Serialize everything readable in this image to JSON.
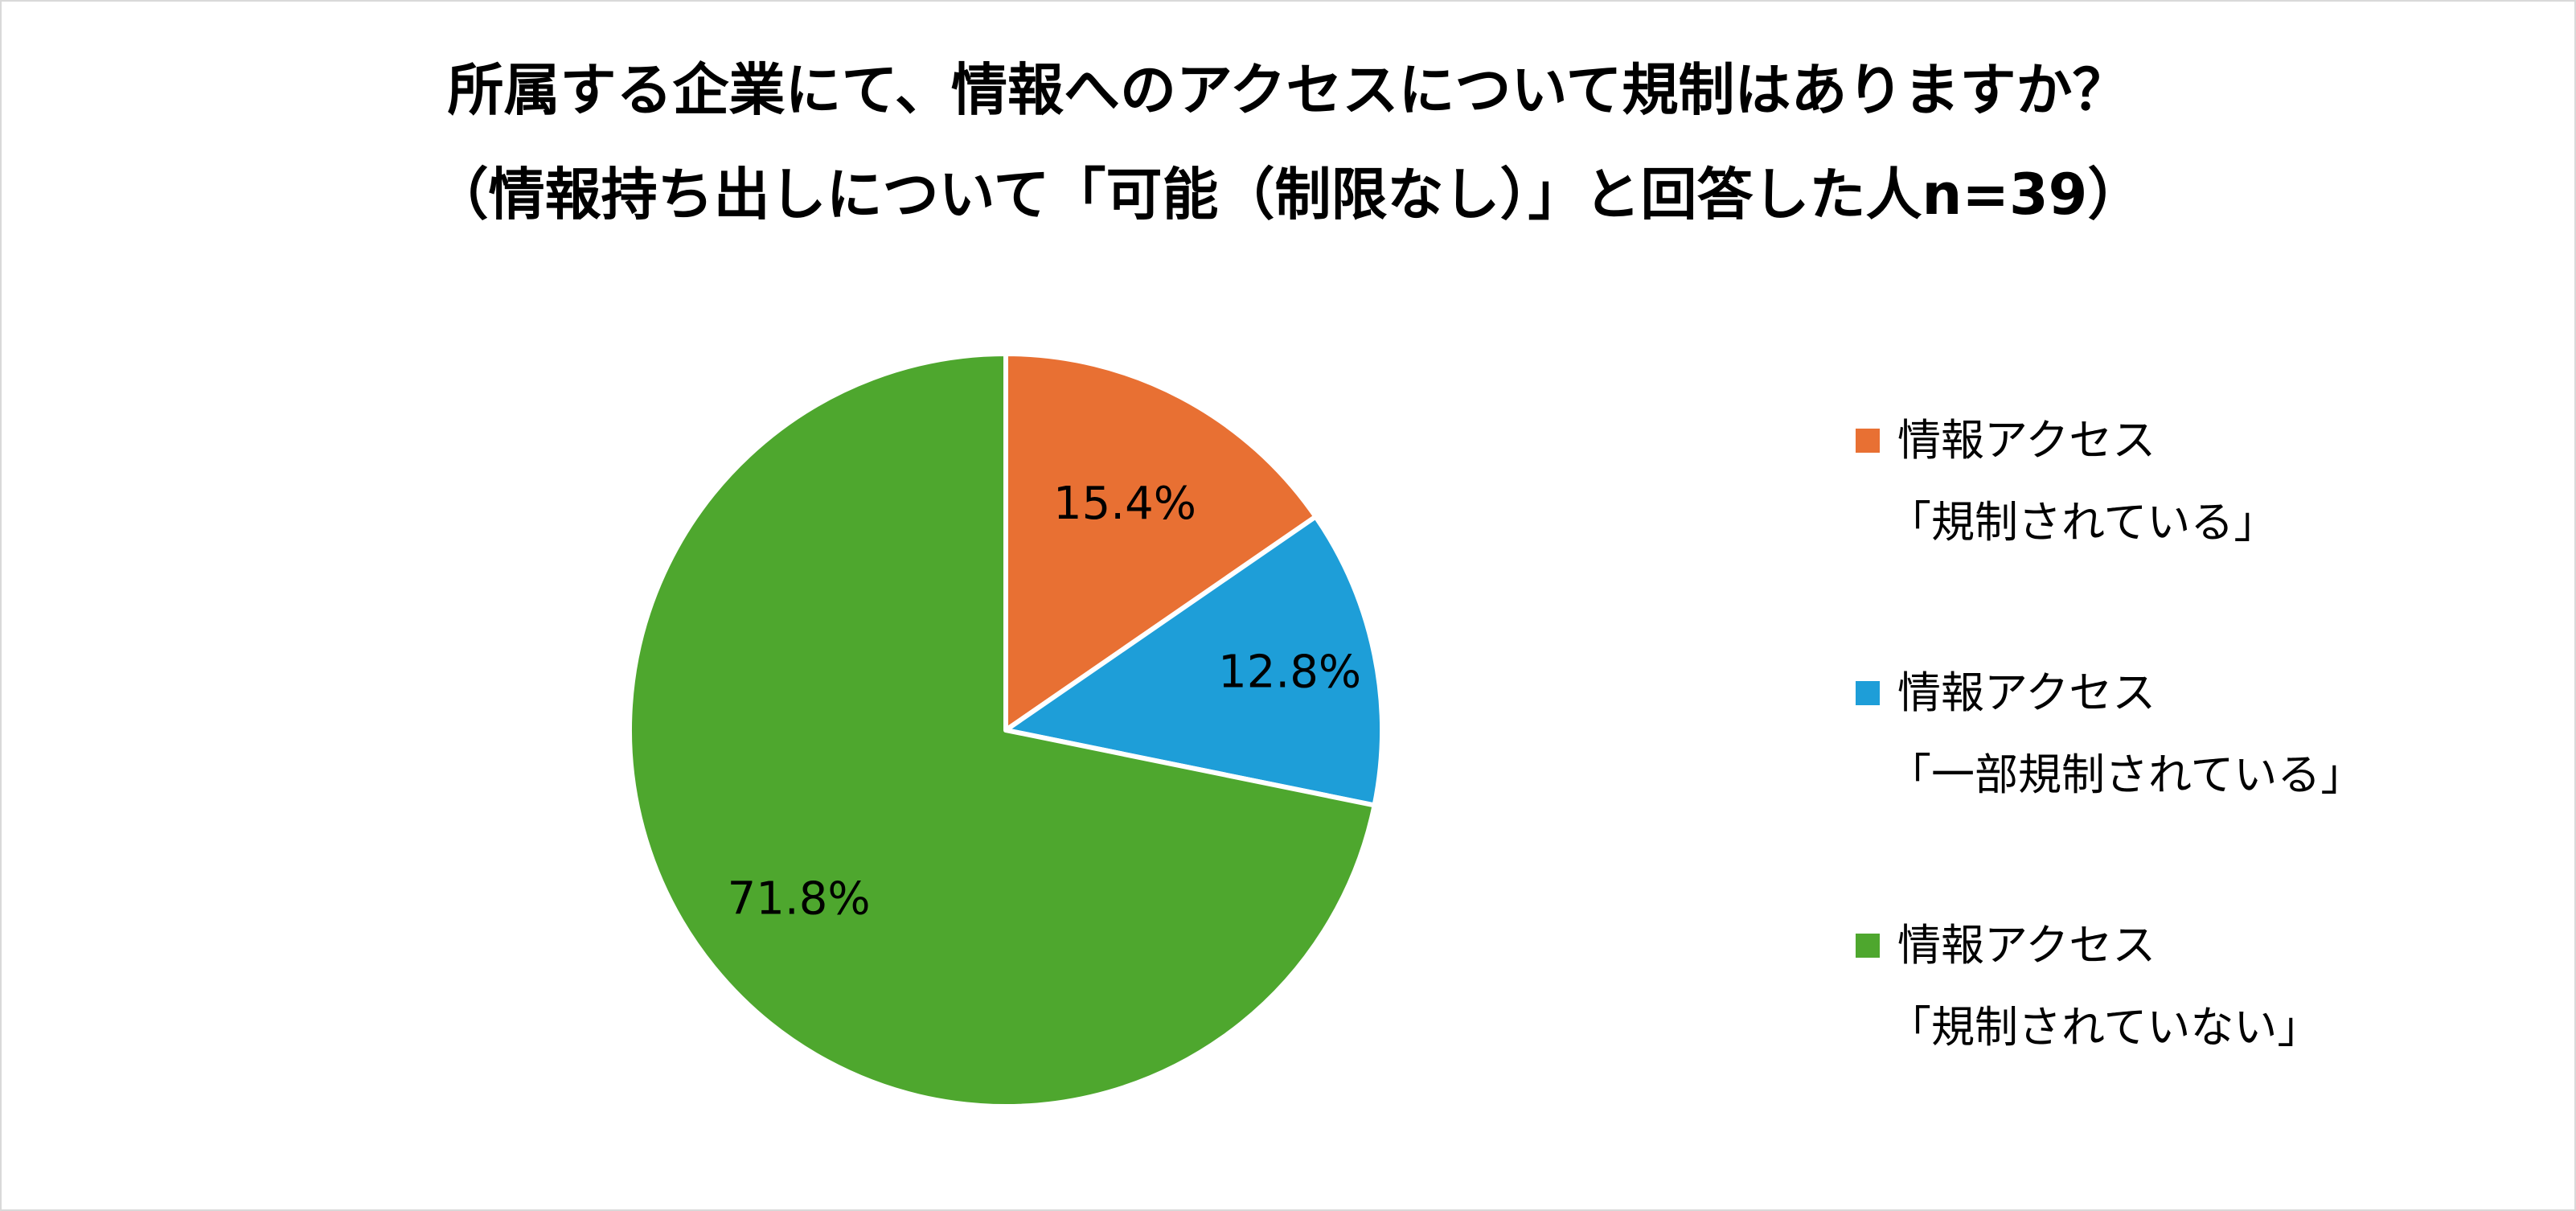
{
  "chart_data": {
    "type": "pie",
    "title": "所属する企業にて、情報へのアクセスについて規制はありますか？",
    "subtitle": "（情報持ち出しについて「可能（制限なし）」と回答した人n=39）",
    "legend_position": "right",
    "slices": [
      {
        "label_line1": "情報アクセス",
        "label_line2": "「規制されている」",
        "value": 15.4,
        "display": "15.4%",
        "color": "#E87033"
      },
      {
        "label_line1": "情報アクセス",
        "label_line2": "「一部規制されている」",
        "value": 12.8,
        "display": "12.8%",
        "color": "#1E9ED8"
      },
      {
        "label_line1": "情報アクセス",
        "label_line2": "「規制されていない」",
        "value": 71.8,
        "display": "71.8%",
        "color": "#4EA72E"
      }
    ]
  }
}
